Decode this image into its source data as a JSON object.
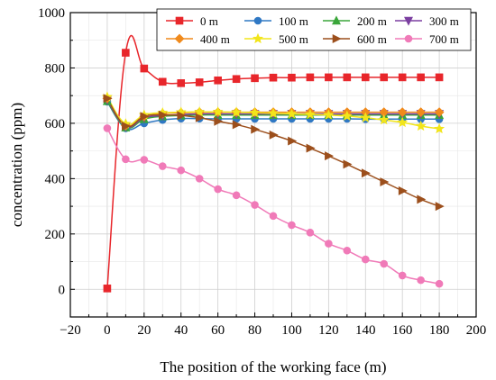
{
  "chart_data": {
    "type": "line",
    "title": "",
    "xlabel": "The position of the working face (m)",
    "ylabel": "concentration (ppm)",
    "xlim": [
      -20,
      200
    ],
    "ylim": [
      -100,
      1000
    ],
    "xticks": [
      -20,
      0,
      20,
      40,
      60,
      80,
      100,
      120,
      140,
      160,
      180,
      200
    ],
    "yticks": [
      0,
      200,
      400,
      600,
      800,
      1000
    ],
    "grid": true,
    "legend_position": "top-right",
    "series": [
      {
        "name": "0 m",
        "color": "#e8262b",
        "marker": "square",
        "x": [
          0,
          10,
          20,
          30,
          40,
          50,
          60,
          70,
          80,
          90,
          100,
          110,
          120,
          130,
          140,
          150,
          160,
          170,
          180
        ],
        "y": [
          3,
          855,
          798,
          750,
          745,
          748,
          755,
          760,
          763,
          765,
          765,
          766,
          766,
          766,
          766,
          766,
          766,
          766,
          766
        ]
      },
      {
        "name": "100 m",
        "color": "#2f78c4",
        "marker": "circle",
        "x": [
          0,
          10,
          20,
          30,
          40,
          50,
          60,
          70,
          80,
          90,
          100,
          110,
          120,
          130,
          140,
          150,
          160,
          170,
          180
        ],
        "y": [
          678,
          582,
          600,
          612,
          617,
          617,
          616,
          616,
          616,
          616,
          616,
          616,
          616,
          616,
          615,
          615,
          615,
          615,
          615
        ]
      },
      {
        "name": "200 m",
        "color": "#3aa63a",
        "marker": "triangle-up",
        "x": [
          0,
          10,
          20,
          30,
          40,
          50,
          60,
          70,
          80,
          90,
          100,
          110,
          120,
          130,
          140,
          150,
          160,
          170,
          180
        ],
        "y": [
          680,
          585,
          615,
          625,
          628,
          630,
          630,
          630,
          630,
          630,
          630,
          630,
          630,
          630,
          630,
          630,
          630,
          630,
          630
        ]
      },
      {
        "name": "300 m",
        "color": "#7b3fa0",
        "marker": "triangle-down",
        "x": [
          0,
          10,
          20,
          30,
          40,
          50,
          60,
          70,
          80,
          90,
          100,
          110,
          120,
          130,
          140,
          150,
          160,
          170,
          180
        ],
        "y": [
          685,
          588,
          620,
          628,
          632,
          634,
          634,
          634,
          634,
          634,
          634,
          634,
          634,
          634,
          634,
          634,
          634,
          634,
          634
        ]
      },
      {
        "name": "400 m",
        "color": "#f08a1c",
        "marker": "diamond",
        "x": [
          0,
          10,
          20,
          30,
          40,
          50,
          60,
          70,
          80,
          90,
          100,
          110,
          120,
          130,
          140,
          150,
          160,
          170,
          180
        ],
        "y": [
          690,
          592,
          625,
          635,
          638,
          640,
          640,
          640,
          640,
          640,
          640,
          640,
          640,
          640,
          640,
          640,
          640,
          640,
          640
        ]
      },
      {
        "name": "500 m",
        "color": "#f2e51a",
        "marker": "star",
        "x": [
          0,
          10,
          20,
          30,
          40,
          50,
          60,
          70,
          80,
          90,
          100,
          110,
          120,
          130,
          140,
          150,
          160,
          170,
          180
        ],
        "y": [
          695,
          598,
          630,
          638,
          640,
          641,
          641,
          640,
          638,
          636,
          634,
          632,
          630,
          626,
          620,
          612,
          603,
          590,
          580
        ]
      },
      {
        "name": "600 m",
        "color": "#9c4f1c",
        "marker": "triangle-right",
        "x": [
          0,
          10,
          20,
          30,
          40,
          50,
          60,
          70,
          80,
          90,
          100,
          110,
          120,
          130,
          140,
          150,
          160,
          170,
          180
        ],
        "y": [
          690,
          590,
          625,
          630,
          628,
          620,
          607,
          595,
          578,
          558,
          536,
          510,
          482,
          452,
          420,
          388,
          356,
          325,
          300
        ]
      },
      {
        "name": "700 m",
        "color": "#f07ab8",
        "marker": "circle",
        "x": [
          0,
          10,
          20,
          30,
          40,
          50,
          60,
          70,
          80,
          90,
          100,
          110,
          120,
          130,
          140,
          150,
          160,
          170,
          180
        ],
        "y": [
          582,
          470,
          468,
          445,
          430,
          400,
          362,
          340,
          305,
          265,
          232,
          205,
          165,
          140,
          108,
          92,
          50,
          33,
          20
        ]
      }
    ]
  }
}
